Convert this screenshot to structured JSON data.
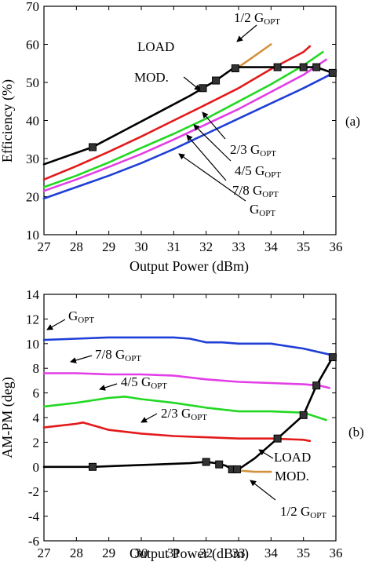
{
  "chart_data": [
    {
      "id": "top",
      "type": "line",
      "panel_label": "(a)",
      "xlabel": "Output Power (dBm)",
      "ylabel": "Efficiency (%)",
      "xlim": [
        27,
        36
      ],
      "ylim": [
        10,
        70
      ],
      "xticks": [
        27,
        28,
        29,
        30,
        31,
        32,
        33,
        34,
        35,
        36
      ],
      "yticks": [
        10,
        20,
        30,
        40,
        50,
        60,
        70
      ],
      "grid": false,
      "series": [
        {
          "key": "gopt",
          "color": "#1f3fd6",
          "x": [
            27,
            28,
            29,
            30,
            31,
            32,
            33,
            34,
            35,
            35.7,
            36
          ],
          "y": [
            19.5,
            22.5,
            25.5,
            28.8,
            32.5,
            36.5,
            40.5,
            44.5,
            48.5,
            51.5,
            53
          ]
        },
        {
          "key": "g78",
          "color": "#e23ee6",
          "x": [
            27,
            28,
            29,
            30,
            31,
            32,
            33,
            34,
            35,
            35.7
          ],
          "y": [
            21.5,
            24.5,
            27.8,
            31.2,
            35,
            39,
            43,
            47.5,
            52,
            56
          ]
        },
        {
          "key": "g45",
          "color": "#22d822",
          "x": [
            27,
            28,
            29,
            30,
            31,
            32,
            33,
            34,
            35,
            35.6
          ],
          "y": [
            22.5,
            25.5,
            29,
            32.8,
            36.5,
            40.5,
            45,
            49.5,
            54.5,
            58
          ]
        },
        {
          "key": "g23",
          "color": "#e31a1a",
          "x": [
            27,
            28,
            29,
            30,
            31,
            32,
            33,
            34,
            35,
            35.2
          ],
          "y": [
            24.5,
            28,
            31.8,
            35.8,
            40,
            44.2,
            48.5,
            53.5,
            58,
            59.5
          ]
        },
        {
          "key": "g12",
          "color": "#d2913c",
          "x": [
            33,
            33.5,
            34
          ],
          "y": [
            54,
            57,
            60
          ]
        },
        {
          "key": "loadmod",
          "color": "#000000",
          "x": [
            27,
            28.5,
            29.5,
            30.5,
            31.5,
            31.9,
            32.3,
            32.8,
            32.9,
            34.2,
            35,
            35.4,
            35.9
          ],
          "y": [
            28.5,
            33,
            37.5,
            42,
            46.5,
            48.5,
            50.5,
            53.5,
            54,
            54,
            54,
            54,
            52.5
          ],
          "markers": [
            [
              28.5,
              33
            ],
            [
              31.9,
              48.5
            ],
            [
              32.3,
              50.5
            ],
            [
              32.9,
              53.7
            ],
            [
              34.2,
              54
            ],
            [
              35,
              54
            ],
            [
              35.4,
              54
            ],
            [
              35.9,
              52.5
            ]
          ]
        }
      ],
      "annotations": [
        {
          "key": "g12",
          "base": "1/2 G",
          "sub": "OPT"
        },
        {
          "key": "load1",
          "base": "LOAD",
          "sub": ""
        },
        {
          "key": "load2",
          "base": "MOD.",
          "sub": ""
        },
        {
          "key": "g23",
          "base": "2/3 G",
          "sub": "OPT"
        },
        {
          "key": "g45",
          "base": "4/5 G",
          "sub": "OPT"
        },
        {
          "key": "g78",
          "base": "7/8 G",
          "sub": "OPT"
        },
        {
          "key": "gopt",
          "base": "G",
          "sub": "OPT"
        }
      ]
    },
    {
      "id": "bottom",
      "type": "line",
      "panel_label": "(b)",
      "xlabel": "Output Power (dBm)",
      "ylabel": "AM-PM (deg)",
      "xlim": [
        27,
        36
      ],
      "ylim": [
        -6,
        14
      ],
      "xticks": [
        27,
        28,
        29,
        30,
        31,
        32,
        33,
        34,
        35,
        36
      ],
      "yticks": [
        -6,
        -4,
        -2,
        0,
        2,
        4,
        6,
        8,
        10,
        12,
        14
      ],
      "grid": false,
      "series": [
        {
          "key": "gopt",
          "color": "#1f3fd6",
          "x": [
            27,
            28,
            29,
            30,
            31,
            31.5,
            32,
            32.5,
            33,
            34,
            35,
            35.5,
            36
          ],
          "y": [
            10.3,
            10.4,
            10.5,
            10.5,
            10.5,
            10.4,
            10.1,
            10.1,
            10.0,
            10.0,
            9.6,
            9.3,
            9.0
          ]
        },
        {
          "key": "g78",
          "color": "#e23ee6",
          "x": [
            27,
            28,
            29,
            30,
            31,
            32,
            33,
            34,
            35,
            35.5,
            35.8
          ],
          "y": [
            7.6,
            7.6,
            7.5,
            7.5,
            7.4,
            7.1,
            6.9,
            6.8,
            6.7,
            6.6,
            6.4
          ]
        },
        {
          "key": "g45",
          "color": "#22d822",
          "x": [
            27,
            28,
            28.5,
            29,
            29.5,
            30,
            31,
            32,
            33,
            34,
            35,
            35.7
          ],
          "y": [
            4.9,
            5.2,
            5.4,
            5.6,
            5.7,
            5.5,
            5.2,
            4.8,
            4.5,
            4.5,
            4.4,
            3.8
          ]
        },
        {
          "key": "g23",
          "color": "#e31a1a",
          "x": [
            27,
            28,
            28.2,
            29,
            30,
            31,
            32,
            33,
            34,
            35,
            35.2
          ],
          "y": [
            3.2,
            3.5,
            3.6,
            3.0,
            2.7,
            2.5,
            2.4,
            2.3,
            2.3,
            2.2,
            2.1
          ]
        },
        {
          "key": "g12",
          "color": "#d2913c",
          "x": [
            33,
            33.5,
            34
          ],
          "y": [
            -0.3,
            -0.4,
            -0.4
          ]
        },
        {
          "key": "loadmod",
          "color": "#000000",
          "x": [
            27,
            28.5,
            29.5,
            30.5,
            31.5,
            32,
            32.3,
            32.6,
            32.8,
            33,
            33.5,
            34.2,
            35,
            35.4,
            35.9
          ],
          "y": [
            0,
            0,
            0.1,
            0.2,
            0.3,
            0.4,
            0.3,
            0.1,
            -0.2,
            -0.2,
            0.7,
            2.3,
            4.2,
            6.6,
            8.9
          ],
          "markers": [
            [
              28.5,
              0
            ],
            [
              32,
              0.4
            ],
            [
              32.4,
              0.2
            ],
            [
              32.8,
              -0.2
            ],
            [
              32.95,
              -0.2
            ],
            [
              34.2,
              2.3
            ],
            [
              35,
              4.2
            ],
            [
              35.4,
              6.6
            ],
            [
              35.9,
              8.9
            ]
          ]
        }
      ],
      "annotations": [
        {
          "key": "gopt",
          "base": "G",
          "sub": "OPT"
        },
        {
          "key": "g78",
          "base": "7/8 G",
          "sub": "OPT"
        },
        {
          "key": "g45",
          "base": "4/5 G",
          "sub": "OPT"
        },
        {
          "key": "g23",
          "base": "2/3 G",
          "sub": "OPT"
        },
        {
          "key": "load1",
          "base": "LOAD",
          "sub": ""
        },
        {
          "key": "load2",
          "base": "MOD.",
          "sub": ""
        },
        {
          "key": "g12",
          "base": "1/2 G",
          "sub": "OPT"
        }
      ]
    }
  ]
}
